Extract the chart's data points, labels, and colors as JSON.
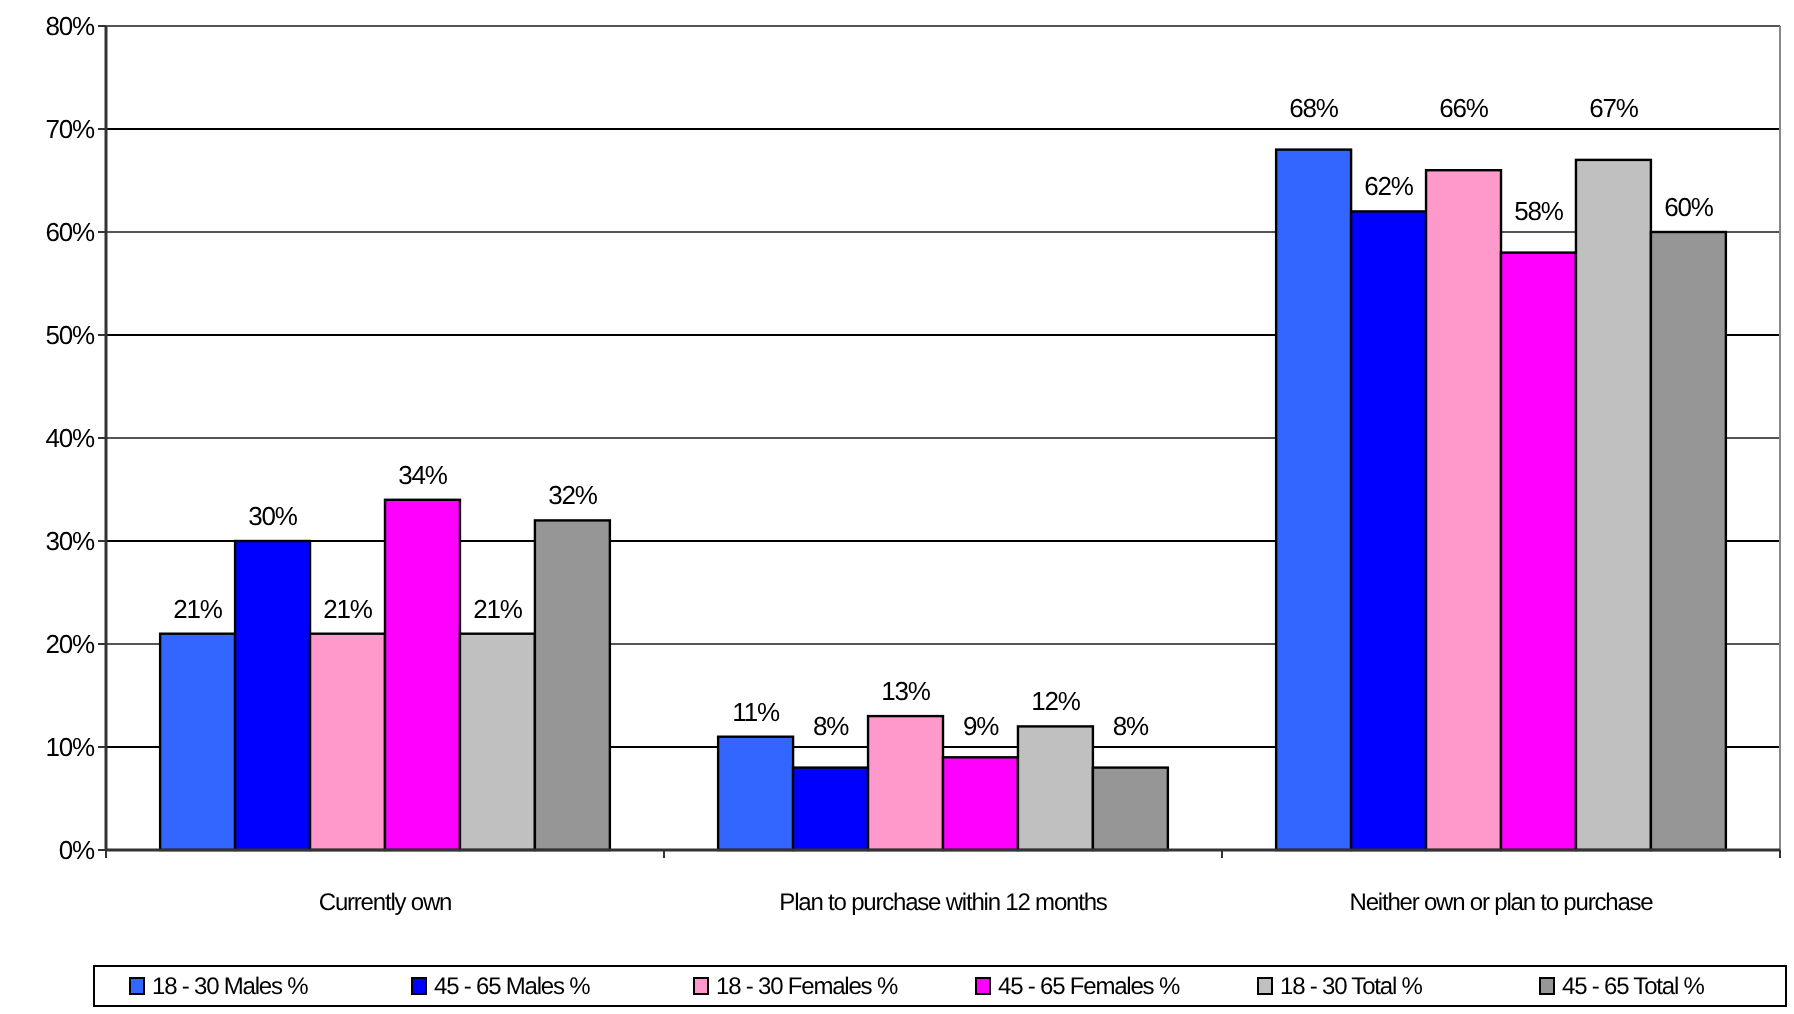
{
  "chart_data": {
    "type": "bar",
    "categories": [
      "Currently own",
      "Plan to purchase within 12 months",
      "Neither own or plan to purchase"
    ],
    "series": [
      {
        "name": "18 - 30 Males %",
        "color": "#3366ff",
        "values": [
          21,
          11,
          68
        ],
        "value_labels": [
          "21%",
          "11%",
          "68%"
        ]
      },
      {
        "name": "45 - 65 Males %",
        "color": "#0000ff",
        "values": [
          30,
          8,
          62
        ],
        "value_labels": [
          "30%",
          "8%",
          "62%"
        ]
      },
      {
        "name": "18 - 30 Females %",
        "color": "#ff99cc",
        "values": [
          21,
          13,
          66
        ],
        "value_labels": [
          "21%",
          "13%",
          "66%"
        ]
      },
      {
        "name": "45 - 65 Females %",
        "color": "#ff00ff",
        "values": [
          34,
          9,
          58
        ],
        "value_labels": [
          "34%",
          "9%",
          "58%"
        ]
      },
      {
        "name": "18 - 30 Total %",
        "color": "#c0c0c0",
        "values": [
          21,
          12,
          67
        ],
        "value_labels": [
          "21%",
          "12%",
          "67%"
        ]
      },
      {
        "name": "45 - 65 Total %",
        "color": "#969696",
        "values": [
          32,
          8,
          60
        ],
        "value_labels": [
          "32%",
          "8%",
          "60%"
        ]
      }
    ],
    "ylim": [
      0,
      80
    ],
    "yticks": [
      {
        "value": 0,
        "label": "0%"
      },
      {
        "value": 10,
        "label": "10%"
      },
      {
        "value": 20,
        "label": "20%"
      },
      {
        "value": 30,
        "label": "30%"
      },
      {
        "value": 40,
        "label": "40%"
      },
      {
        "value": 50,
        "label": "50%"
      },
      {
        "value": 60,
        "label": "60%"
      },
      {
        "value": 70,
        "label": "70%"
      },
      {
        "value": 80,
        "label": "80%"
      }
    ],
    "grid": "y",
    "legend": "bottom"
  }
}
